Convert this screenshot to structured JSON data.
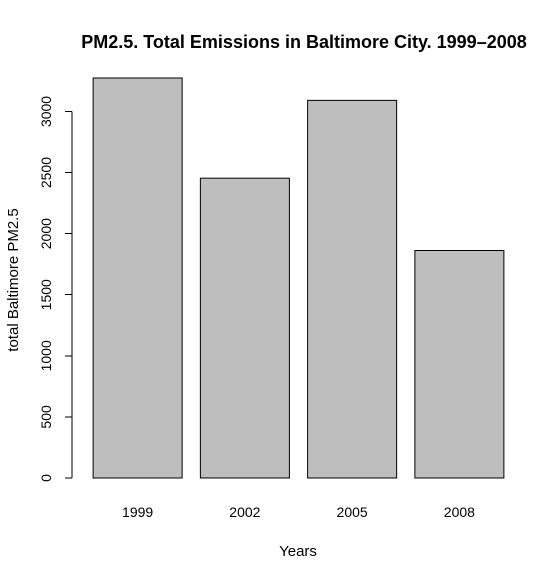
{
  "chart_data": {
    "type": "bar",
    "title": "PM2.5. Total Emissions in Baltimore City. 1999–2008",
    "xlabel": "Years",
    "ylabel": "total Baltimore PM2.5",
    "categories": [
      "1999",
      "2002",
      "2005",
      "2008"
    ],
    "values": [
      3274,
      2454,
      3091,
      1862
    ],
    "ylim": [
      0,
      3274
    ],
    "yticks": [
      0,
      500,
      1000,
      1500,
      2000,
      2500,
      3000
    ],
    "grid": false,
    "legend": "none",
    "bar_color": "#bebebe",
    "bar_border_color": "#000000"
  }
}
